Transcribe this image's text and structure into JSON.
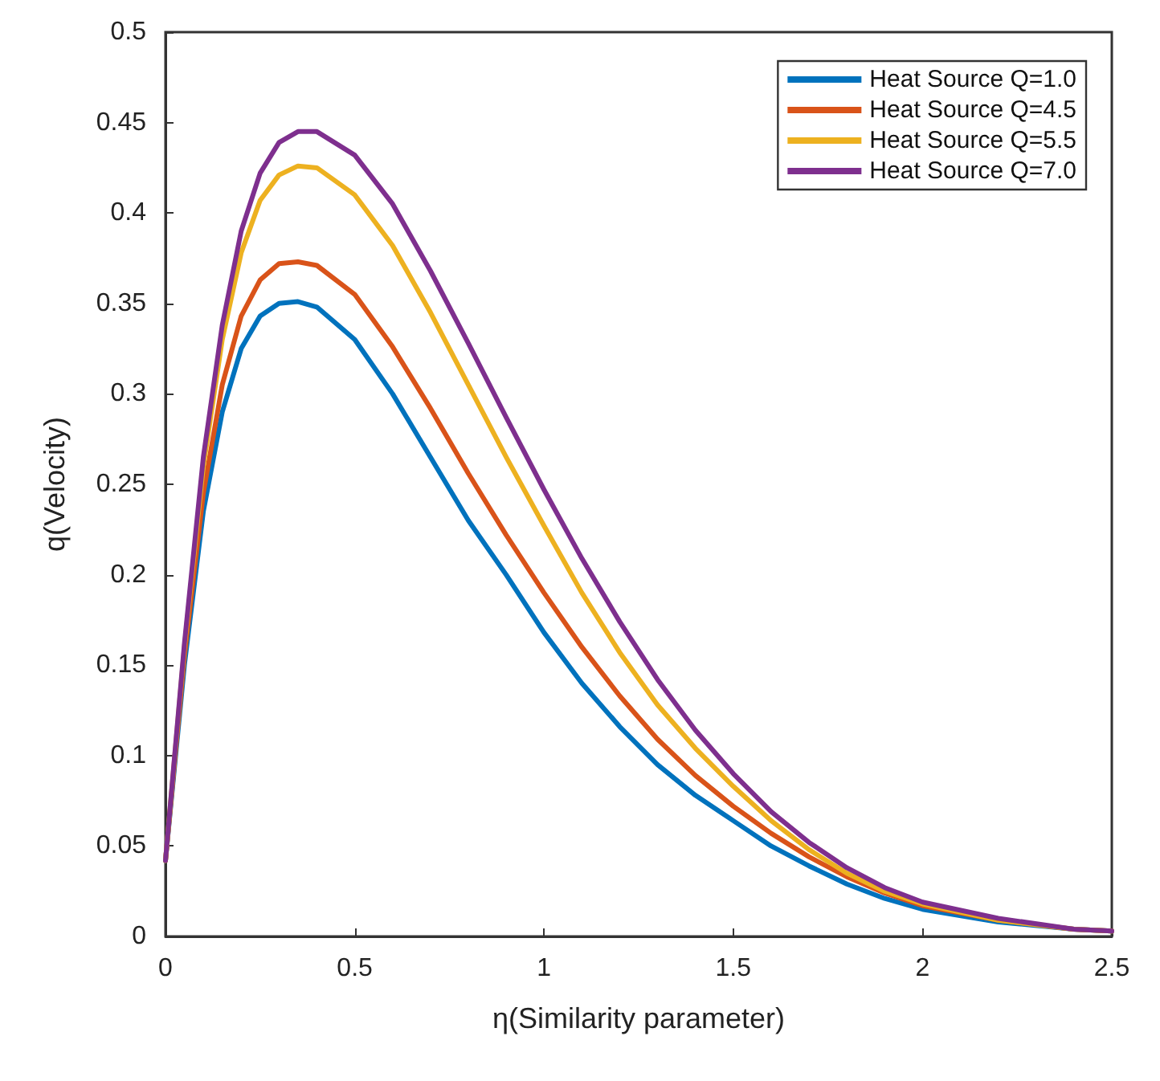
{
  "chart_data": {
    "type": "line",
    "xlabel": "η(Similarity parameter)",
    "ylabel": "q(Velocity)",
    "x": [
      0,
      0.05,
      0.1,
      0.15,
      0.2,
      0.25,
      0.3,
      0.35,
      0.4,
      0.5,
      0.6,
      0.7,
      0.8,
      0.9,
      1.0,
      1.1,
      1.2,
      1.3,
      1.4,
      1.5,
      1.6,
      1.7,
      1.8,
      1.9,
      2.0,
      2.2,
      2.4,
      2.5
    ],
    "series": [
      {
        "name": "Heat Source Q=1.0",
        "color": "#0072bd",
        "values": [
          0.042,
          0.15,
          0.235,
          0.29,
          0.325,
          0.343,
          0.35,
          0.351,
          0.348,
          0.33,
          0.3,
          0.265,
          0.23,
          0.2,
          0.168,
          0.14,
          0.116,
          0.095,
          0.078,
          0.064,
          0.05,
          0.039,
          0.029,
          0.021,
          0.015,
          0.008,
          0.004,
          0.003
        ]
      },
      {
        "name": "Heat Source Q=4.5",
        "color": "#d95319",
        "values": [
          0.042,
          0.155,
          0.245,
          0.305,
          0.343,
          0.363,
          0.372,
          0.373,
          0.371,
          0.355,
          0.326,
          0.292,
          0.256,
          0.222,
          0.19,
          0.16,
          0.133,
          0.109,
          0.089,
          0.072,
          0.057,
          0.044,
          0.033,
          0.024,
          0.017,
          0.009,
          0.004,
          0.003
        ]
      },
      {
        "name": "Heat Source Q=5.5",
        "color": "#edb120",
        "values": [
          0.042,
          0.16,
          0.26,
          0.33,
          0.378,
          0.407,
          0.421,
          0.426,
          0.425,
          0.41,
          0.382,
          0.345,
          0.305,
          0.265,
          0.227,
          0.19,
          0.157,
          0.128,
          0.104,
          0.083,
          0.064,
          0.048,
          0.035,
          0.025,
          0.018,
          0.009,
          0.004,
          0.003
        ]
      },
      {
        "name": "Heat Source Q=7.0",
        "color": "#7e2f8e",
        "values": [
          0.042,
          0.162,
          0.265,
          0.338,
          0.39,
          0.422,
          0.439,
          0.445,
          0.445,
          0.432,
          0.405,
          0.368,
          0.328,
          0.287,
          0.247,
          0.209,
          0.174,
          0.142,
          0.114,
          0.09,
          0.069,
          0.052,
          0.038,
          0.027,
          0.019,
          0.01,
          0.004,
          0.003
        ]
      }
    ],
    "xlim": [
      0,
      2.5
    ],
    "xticks": [
      0,
      0.5,
      1,
      1.5,
      2,
      2.5
    ],
    "ylim": [
      0,
      0.5
    ],
    "yticks": [
      0,
      0.05,
      0.1,
      0.15,
      0.2,
      0.25,
      0.3,
      0.35,
      0.4,
      0.45,
      0.5
    ],
    "grid": false,
    "legend": "top right",
    "marker": "none",
    "line_style": "solid"
  }
}
